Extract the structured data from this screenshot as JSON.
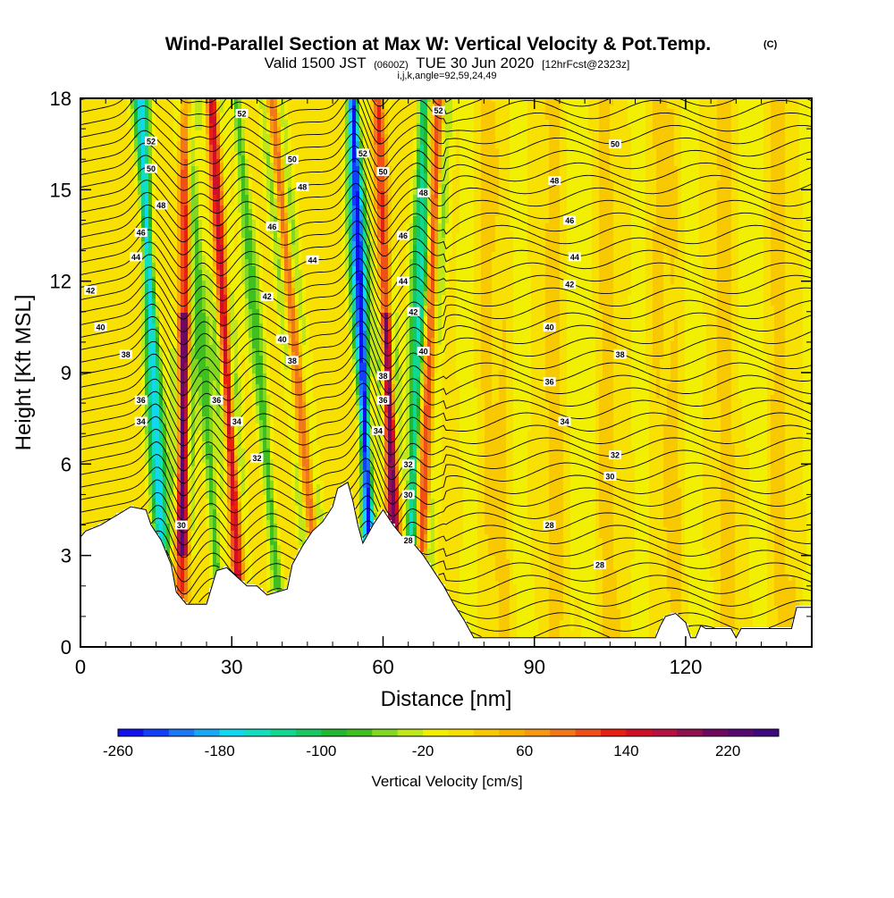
{
  "header": {
    "title": "Wind-Parallel Section at Max W: Vertical Velocity & Pot.Temp.",
    "copyright": "(C)",
    "valid_prefix": "Valid 1500 JST",
    "valid_utc": "(0600Z)",
    "valid_date": "TUE 30 Jun 2020",
    "forecast": "[12hrFcst@2323z]",
    "indices": "i,j,k,angle=92,59,24,49"
  },
  "chart_data": {
    "type": "heatmap",
    "xlabel": "Distance [nm]",
    "ylabel": "Height [Kft MSL]",
    "xlim": [
      0,
      145
    ],
    "ylim": [
      0,
      18
    ],
    "xticks": [
      0,
      30,
      60,
      90,
      120
    ],
    "xtick_labels": [
      "0",
      "30",
      "60",
      "90",
      "120"
    ],
    "yticks": [
      0,
      3,
      6,
      9,
      12,
      15,
      18
    ],
    "ytick_labels": [
      "0",
      "3",
      "6",
      "9",
      "12",
      "15",
      "18"
    ],
    "colorbar": {
      "label": "Vertical Velocity [cm/s]",
      "min": -260,
      "max": 260,
      "step": 20,
      "tick_values": [
        -260,
        -180,
        -100,
        -20,
        60,
        140,
        220
      ],
      "tick_labels": [
        "-260",
        "-180",
        "-100",
        "-20",
        "60",
        "140",
        "220"
      ],
      "colors": [
        "#1010f0",
        "#1040f8",
        "#1878f8",
        "#18a8f8",
        "#10d8f0",
        "#10e0c0",
        "#10d890",
        "#18c860",
        "#20b830",
        "#40c020",
        "#80d820",
        "#c0e818",
        "#f0f000",
        "#f8e000",
        "#f8c800",
        "#f8b000",
        "#f89810",
        "#f07818",
        "#f05018",
        "#e82010",
        "#d01028",
        "#b81040",
        "#901050",
        "#700860",
        "#580870",
        "#400880"
      ]
    },
    "updraft_bands": [
      {
        "x_base": 20,
        "x_top": 21,
        "w": 240
      },
      {
        "x_base": 32,
        "x_top": 26,
        "w": 160
      },
      {
        "x_base": 48,
        "x_top": 38,
        "w": 100
      },
      {
        "x_base": 63,
        "x_top": 59,
        "w": 220
      },
      {
        "x_base": 67,
        "x_top": 71,
        "w": 120
      }
    ],
    "downdraft_bands": [
      {
        "x_base": 17,
        "x_top": 12,
        "w": -180
      },
      {
        "x_base": 28,
        "x_top": 21,
        "w": -80
      },
      {
        "x_base": 40,
        "x_top": 31,
        "w": -80
      },
      {
        "x_base": 58,
        "x_top": 54,
        "w": -260
      },
      {
        "x_base": 65,
        "x_top": 68,
        "w": -120
      }
    ],
    "terrain_kft": [
      [
        0,
        3.6
      ],
      [
        1,
        3.8
      ],
      [
        4,
        4.0
      ],
      [
        7,
        4.3
      ],
      [
        10,
        4.6
      ],
      [
        13,
        4.5
      ],
      [
        14,
        4.0
      ],
      [
        16,
        3.5
      ],
      [
        18,
        2.7
      ],
      [
        19,
        1.8
      ],
      [
        21,
        1.4
      ],
      [
        25,
        1.4
      ],
      [
        27,
        2.5
      ],
      [
        29,
        2.6
      ],
      [
        31,
        2.3
      ],
      [
        33,
        2.0
      ],
      [
        35,
        2.0
      ],
      [
        37,
        1.7
      ],
      [
        41,
        1.9
      ],
      [
        42,
        2.7
      ],
      [
        44,
        3.3
      ],
      [
        46,
        3.8
      ],
      [
        48,
        4.1
      ],
      [
        50,
        4.6
      ],
      [
        51,
        5.2
      ],
      [
        53,
        5.4
      ],
      [
        54,
        4.8
      ],
      [
        55,
        4.0
      ],
      [
        56,
        3.4
      ],
      [
        57,
        3.7
      ],
      [
        58,
        4.0
      ],
      [
        60,
        4.5
      ],
      [
        62,
        4.0
      ],
      [
        64,
        3.6
      ],
      [
        66,
        3.4
      ],
      [
        68,
        3.0
      ],
      [
        70,
        2.5
      ],
      [
        72,
        2.0
      ],
      [
        74,
        1.4
      ],
      [
        76,
        0.9
      ],
      [
        78,
        0.3
      ],
      [
        85,
        0.3
      ],
      [
        100,
        0.3
      ],
      [
        114,
        0.3
      ],
      [
        115,
        0.7
      ],
      [
        116,
        1.0
      ],
      [
        118,
        1.1
      ],
      [
        120,
        0.8
      ],
      [
        121,
        0.3
      ],
      [
        122,
        0.3
      ],
      [
        123,
        0.7
      ],
      [
        124,
        0.6
      ],
      [
        129,
        0.6
      ],
      [
        130,
        0.3
      ],
      [
        131,
        0.6
      ],
      [
        138,
        0.6
      ],
      [
        141,
        0.6
      ],
      [
        142,
        1.3
      ],
      [
        145,
        1.3
      ]
    ],
    "theta_contours": [
      {
        "value": 28,
        "x": 103,
        "y": 2.7
      },
      {
        "value": 28,
        "x": 93,
        "y": 4.0
      },
      {
        "value": 28,
        "x": 65,
        "y": 3.5
      },
      {
        "value": 30,
        "x": 105,
        "y": 5.6
      },
      {
        "value": 30,
        "x": 65,
        "y": 5.0
      },
      {
        "value": 30,
        "x": 20,
        "y": 4.0
      },
      {
        "value": 32,
        "x": 106,
        "y": 6.3
      },
      {
        "value": 32,
        "x": 65,
        "y": 6.0
      },
      {
        "value": 32,
        "x": 35,
        "y": 6.2
      },
      {
        "value": 34,
        "x": 96,
        "y": 7.4
      },
      {
        "value": 34,
        "x": 59,
        "y": 7.1
      },
      {
        "value": 34,
        "x": 31,
        "y": 7.4
      },
      {
        "value": 34,
        "x": 12,
        "y": 7.4
      },
      {
        "value": 36,
        "x": 93,
        "y": 8.7
      },
      {
        "value": 36,
        "x": 60,
        "y": 8.1
      },
      {
        "value": 36,
        "x": 27,
        "y": 8.1
      },
      {
        "value": 36,
        "x": 12,
        "y": 8.1
      },
      {
        "value": 38,
        "x": 107,
        "y": 9.6
      },
      {
        "value": 38,
        "x": 60,
        "y": 8.9
      },
      {
        "value": 38,
        "x": 42,
        "y": 9.4
      },
      {
        "value": 38,
        "x": 9,
        "y": 9.6
      },
      {
        "value": 40,
        "x": 93,
        "y": 10.5
      },
      {
        "value": 40,
        "x": 68,
        "y": 9.7
      },
      {
        "value": 40,
        "x": 40,
        "y": 10.1
      },
      {
        "value": 40,
        "x": 4,
        "y": 10.5
      },
      {
        "value": 42,
        "x": 97,
        "y": 11.9
      },
      {
        "value": 42,
        "x": 66,
        "y": 11.0
      },
      {
        "value": 42,
        "x": 37,
        "y": 11.5
      },
      {
        "value": 42,
        "x": 2,
        "y": 11.7
      },
      {
        "value": 44,
        "x": 98,
        "y": 12.8
      },
      {
        "value": 44,
        "x": 64,
        "y": 12.0
      },
      {
        "value": 44,
        "x": 46,
        "y": 12.7
      },
      {
        "value": 44,
        "x": 11,
        "y": 12.8
      },
      {
        "value": 46,
        "x": 97,
        "y": 14.0
      },
      {
        "value": 46,
        "x": 64,
        "y": 13.5
      },
      {
        "value": 46,
        "x": 38,
        "y": 13.8
      },
      {
        "value": 46,
        "x": 12,
        "y": 13.6
      },
      {
        "value": 48,
        "x": 94,
        "y": 15.3
      },
      {
        "value": 48,
        "x": 68,
        "y": 14.9
      },
      {
        "value": 48,
        "x": 44,
        "y": 15.1
      },
      {
        "value": 48,
        "x": 16,
        "y": 14.5
      },
      {
        "value": 50,
        "x": 106,
        "y": 16.5
      },
      {
        "value": 50,
        "x": 60,
        "y": 15.6
      },
      {
        "value": 50,
        "x": 42,
        "y": 16.0
      },
      {
        "value": 50,
        "x": 14,
        "y": 15.7
      },
      {
        "value": 52,
        "x": 71,
        "y": 17.6
      },
      {
        "value": 52,
        "x": 56,
        "y": 16.2
      },
      {
        "value": 52,
        "x": 32,
        "y": 17.5
      },
      {
        "value": 52,
        "x": 14,
        "y": 16.6
      }
    ]
  }
}
